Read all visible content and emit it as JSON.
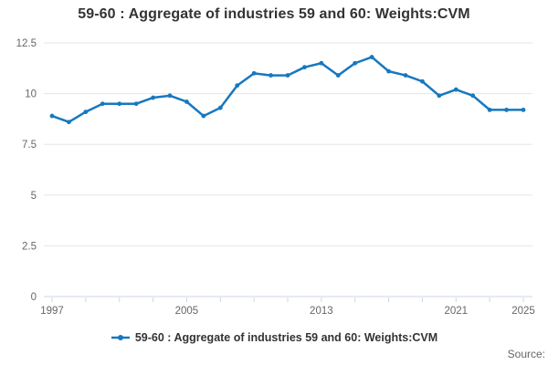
{
  "header": {
    "title": "59-60 : Aggregate of industries 59 and 60: Weights:CVM"
  },
  "legend": {
    "label": "59-60 : Aggregate of industries 59 and 60: Weights:CVM"
  },
  "footer": {
    "source_label": "Source:"
  },
  "colors": {
    "line": "#1778be",
    "grid": "#e6e6e6",
    "axis": "#ccd6eb",
    "tick_label": "#666666",
    "title_text": "#333333",
    "legend_text": "#333333",
    "source_text": "#666666"
  },
  "chart_data": {
    "type": "line",
    "title": "59-60 : Aggregate of industries 59 and 60: Weights:CVM",
    "xlabel": "",
    "ylabel": "",
    "xlim": [
      1997,
      2025
    ],
    "ylim": [
      0,
      12.5
    ],
    "grid": true,
    "legend_position": "bottom",
    "yticks": [
      0,
      2.5,
      5,
      7.5,
      10,
      12.5
    ],
    "xticks_labeled": [
      1997,
      2005,
      2013,
      2021,
      2025
    ],
    "xtick_interval": 2,
    "x": [
      1997,
      1998,
      1999,
      2000,
      2001,
      2002,
      2003,
      2004,
      2005,
      2006,
      2007,
      2008,
      2009,
      2010,
      2011,
      2012,
      2013,
      2014,
      2015,
      2016,
      2017,
      2018,
      2019,
      2020,
      2021,
      2022,
      2023,
      2024,
      2025
    ],
    "series": [
      {
        "name": "59-60 : Aggregate of industries 59 and 60: Weights:CVM",
        "values": [
          8.9,
          8.6,
          9.1,
          9.5,
          9.5,
          9.5,
          9.8,
          9.9,
          9.6,
          8.9,
          9.3,
          10.4,
          11.0,
          10.9,
          10.9,
          11.3,
          11.5,
          10.9,
          11.5,
          11.8,
          11.1,
          10.9,
          10.6,
          9.9,
          10.2,
          9.9,
          9.2,
          9.2,
          9.2
        ]
      }
    ]
  }
}
